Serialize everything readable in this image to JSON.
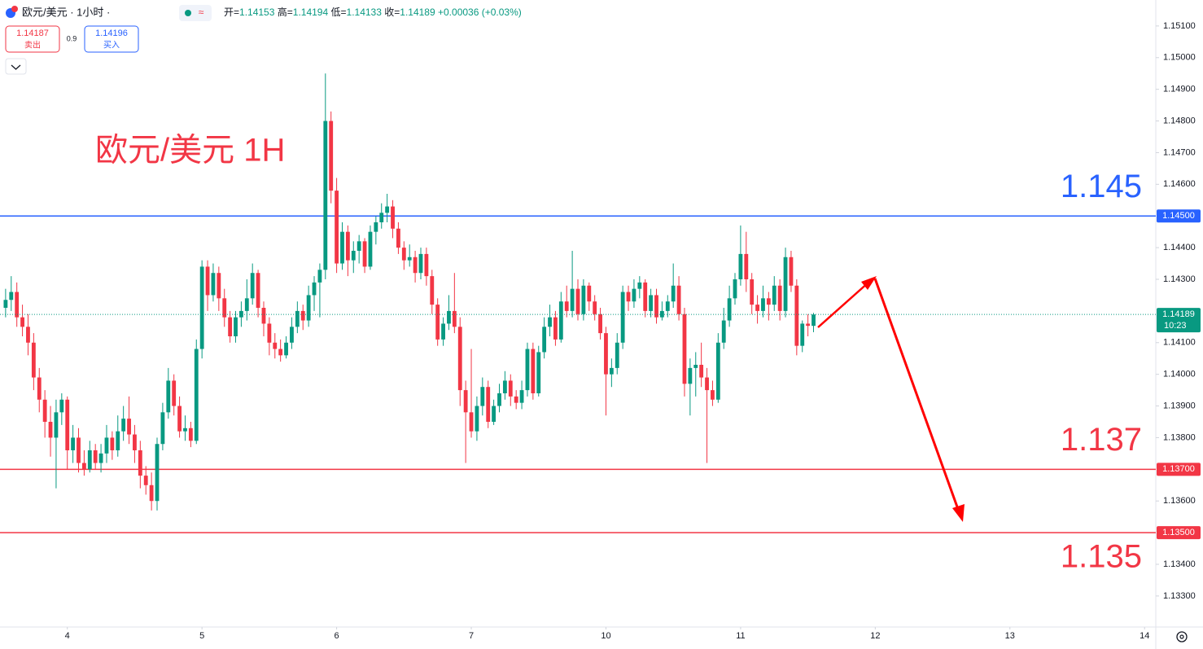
{
  "chart_data": {
    "type": "candlestick",
    "symbol": "欧元/美元 · 1小时 ·",
    "ohlc_header": [
      {
        "k": "开=",
        "v": "1.14153"
      },
      {
        "k": "高=",
        "v": "1.14194"
      },
      {
        "k": "低=",
        "v": "1.14133"
      },
      {
        "k": "收=",
        "v": "1.14189"
      }
    ],
    "change": "+0.00036 (+0.03%)",
    "sell": {
      "price": "1.14187",
      "label": "卖出"
    },
    "spread": "0.9",
    "buy": {
      "price": "1.14196",
      "label": "买入"
    },
    "annotation": "欧元/美元 1H",
    "up_color": "#089981",
    "down_color": "#f23645",
    "xlim": [
      -12,
      194
    ],
    "ylim": [
      1.13202,
      1.15182
    ],
    "xticks": [
      {
        "value": 0,
        "label": "4"
      },
      {
        "value": 24,
        "label": "5"
      },
      {
        "value": 48,
        "label": "6"
      },
      {
        "value": 72,
        "label": "7"
      },
      {
        "value": 96,
        "label": "10"
      },
      {
        "value": 120,
        "label": "11"
      },
      {
        "value": 144,
        "label": "12"
      },
      {
        "value": 168,
        "label": "13"
      },
      {
        "value": 192,
        "label": "14"
      }
    ],
    "yticks": [
      {
        "value": 1.151,
        "label": "1.15100"
      },
      {
        "value": 1.15,
        "label": "1.15000"
      },
      {
        "value": 1.149,
        "label": "1.14900"
      },
      {
        "value": 1.148,
        "label": "1.14800"
      },
      {
        "value": 1.147,
        "label": "1.14700"
      },
      {
        "value": 1.146,
        "label": "1.14600"
      },
      {
        "value": 1.144,
        "label": "1.14400"
      },
      {
        "value": 1.143,
        "label": "1.14300"
      },
      {
        "value": 1.141,
        "label": "1.14100"
      },
      {
        "value": 1.14,
        "label": "1.14000"
      },
      {
        "value": 1.139,
        "label": "1.13900"
      },
      {
        "value": 1.138,
        "label": "1.13800"
      },
      {
        "value": 1.136,
        "label": "1.13600"
      },
      {
        "value": 1.134,
        "label": "1.13400"
      },
      {
        "value": 1.133,
        "label": "1.13300"
      }
    ],
    "levels": [
      {
        "value": 1.145,
        "color": "#2962ff",
        "label": "1.145",
        "tag": "1.14500"
      },
      {
        "value": 1.137,
        "color": "#f23645",
        "label": "1.137",
        "tag": "1.13700"
      },
      {
        "value": 1.135,
        "color": "#f23645",
        "label": "1.135",
        "tag": "1.13500"
      }
    ],
    "last": {
      "value": 1.14189,
      "label": "1.14189",
      "time": "10:23"
    },
    "x": [
      -11,
      -10,
      -9,
      -8,
      -7,
      -6,
      -5,
      -4,
      -3,
      -2,
      -1,
      0,
      1,
      2,
      3,
      4,
      5,
      6,
      7,
      8,
      9,
      10,
      11,
      12,
      13,
      14,
      15,
      16,
      17,
      18,
      19,
      20,
      21,
      22,
      23,
      24,
      25,
      26,
      27,
      28,
      29,
      30,
      31,
      32,
      33,
      34,
      35,
      36,
      37,
      38,
      39,
      40,
      41,
      42,
      43,
      44,
      45,
      46,
      47,
      48,
      49,
      50,
      51,
      52,
      53,
      54,
      55,
      56,
      57,
      58,
      59,
      60,
      61,
      62,
      63,
      64,
      65,
      66,
      67,
      68,
      69,
      70,
      71,
      72,
      73,
      74,
      75,
      76,
      77,
      78,
      79,
      80,
      81,
      82,
      83,
      84,
      85,
      86,
      87,
      88,
      89,
      90,
      91,
      92,
      93,
      94,
      95,
      96,
      97,
      98,
      99,
      100,
      101,
      102,
      103,
      104,
      105,
      106,
      107,
      108,
      109,
      110,
      111,
      112,
      113,
      114,
      115,
      116,
      117,
      118,
      119,
      120,
      121,
      122,
      123,
      124,
      125,
      126,
      127,
      128,
      129,
      130,
      131,
      132,
      133
    ],
    "ohlc": [
      [
        1.1421,
        1.1427,
        1.1418,
        1.14235
      ],
      [
        1.14235,
        1.1431,
        1.142,
        1.1426
      ],
      [
        1.1426,
        1.1429,
        1.1415,
        1.1418
      ],
      [
        1.1418,
        1.1422,
        1.1412,
        1.1415
      ],
      [
        1.1415,
        1.1419,
        1.1406,
        1.141
      ],
      [
        1.141,
        1.1413,
        1.1395,
        1.1399
      ],
      [
        1.1399,
        1.1402,
        1.1388,
        1.1392
      ],
      [
        1.1392,
        1.1395,
        1.138,
        1.1385
      ],
      [
        1.1385,
        1.139,
        1.1374,
        1.138
      ],
      [
        1.138,
        1.1392,
        1.1364,
        1.1388
      ],
      [
        1.1388,
        1.1394,
        1.1384,
        1.1392
      ],
      [
        1.1392,
        1.1393,
        1.137,
        1.1376
      ],
      [
        1.1376,
        1.1384,
        1.1372,
        1.138
      ],
      [
        1.138,
        1.1383,
        1.1369,
        1.1372
      ],
      [
        1.1372,
        1.1376,
        1.1368,
        1.137
      ],
      [
        1.137,
        1.1379,
        1.1369,
        1.1376
      ],
      [
        1.1376,
        1.1378,
        1.137,
        1.1372
      ],
      [
        1.1372,
        1.1378,
        1.1369,
        1.1375
      ],
      [
        1.1375,
        1.1384,
        1.1372,
        1.138
      ],
      [
        1.138,
        1.1382,
        1.1373,
        1.1376
      ],
      [
        1.1376,
        1.1387,
        1.1374,
        1.1382
      ],
      [
        1.1382,
        1.139,
        1.1379,
        1.1386
      ],
      [
        1.1386,
        1.1393,
        1.1378,
        1.1381
      ],
      [
        1.1381,
        1.1384,
        1.1372,
        1.1376
      ],
      [
        1.1376,
        1.1379,
        1.1364,
        1.1368
      ],
      [
        1.1368,
        1.1371,
        1.1362,
        1.1365
      ],
      [
        1.1365,
        1.1369,
        1.1357,
        1.136
      ],
      [
        1.136,
        1.138,
        1.1357,
        1.1378
      ],
      [
        1.1378,
        1.1391,
        1.1376,
        1.1388
      ],
      [
        1.1388,
        1.1402,
        1.1386,
        1.1398
      ],
      [
        1.1398,
        1.14,
        1.1387,
        1.139
      ],
      [
        1.139,
        1.1393,
        1.138,
        1.1382
      ],
      [
        1.1382,
        1.1387,
        1.1379,
        1.1383
      ],
      [
        1.1383,
        1.1385,
        1.1377,
        1.1379
      ],
      [
        1.1379,
        1.1411,
        1.1378,
        1.1408
      ],
      [
        1.1408,
        1.1436,
        1.1405,
        1.1434
      ],
      [
        1.1434,
        1.1436,
        1.142,
        1.1425
      ],
      [
        1.1425,
        1.1435,
        1.1423,
        1.1432
      ],
      [
        1.1432,
        1.1434,
        1.142,
        1.1424
      ],
      [
        1.1424,
        1.1427,
        1.1415,
        1.1418
      ],
      [
        1.1418,
        1.142,
        1.141,
        1.1412
      ],
      [
        1.1412,
        1.142,
        1.141,
        1.1418
      ],
      [
        1.1418,
        1.1423,
        1.1415,
        1.142
      ],
      [
        1.142,
        1.143,
        1.1417,
        1.1424
      ],
      [
        1.1424,
        1.1435,
        1.1422,
        1.1432
      ],
      [
        1.1432,
        1.1433,
        1.1418,
        1.1421
      ],
      [
        1.1421,
        1.1423,
        1.1412,
        1.1416
      ],
      [
        1.1416,
        1.1418,
        1.1406,
        1.141
      ],
      [
        1.141,
        1.1413,
        1.1405,
        1.1408
      ],
      [
        1.1408,
        1.1411,
        1.1404,
        1.1406
      ],
      [
        1.1406,
        1.1412,
        1.1405,
        1.141
      ],
      [
        1.141,
        1.1418,
        1.1408,
        1.1415
      ],
      [
        1.1415,
        1.1423,
        1.1413,
        1.142
      ],
      [
        1.142,
        1.1422,
        1.1414,
        1.1417
      ],
      [
        1.1417,
        1.1428,
        1.1415,
        1.1425
      ],
      [
        1.1425,
        1.1431,
        1.142,
        1.1429
      ],
      [
        1.1429,
        1.1435,
        1.1418,
        1.1433
      ],
      [
        1.1433,
        1.1495,
        1.143,
        1.148
      ],
      [
        1.148,
        1.1483,
        1.1454,
        1.1458
      ],
      [
        1.1458,
        1.1462,
        1.1432,
        1.1435
      ],
      [
        1.1435,
        1.1448,
        1.1433,
        1.1445
      ],
      [
        1.1445,
        1.1447,
        1.1431,
        1.1436
      ],
      [
        1.1436,
        1.1442,
        1.1432,
        1.1439
      ],
      [
        1.1439,
        1.1444,
        1.1435,
        1.1442
      ],
      [
        1.1442,
        1.1443,
        1.1432,
        1.1434
      ],
      [
        1.1434,
        1.1447,
        1.1433,
        1.1445
      ],
      [
        1.1445,
        1.145,
        1.1441,
        1.1448
      ],
      [
        1.1448,
        1.1454,
        1.1446,
        1.1451
      ],
      [
        1.1451,
        1.1457,
        1.1448,
        1.1453
      ],
      [
        1.1453,
        1.1455,
        1.1443,
        1.1446
      ],
      [
        1.1446,
        1.1448,
        1.1438,
        1.144
      ],
      [
        1.144,
        1.1442,
        1.1433,
        1.1436
      ],
      [
        1.1436,
        1.1441,
        1.1434,
        1.1437
      ],
      [
        1.1437,
        1.1439,
        1.1429,
        1.1432
      ],
      [
        1.1432,
        1.144,
        1.143,
        1.1438
      ],
      [
        1.1438,
        1.144,
        1.1428,
        1.1431
      ],
      [
        1.1431,
        1.1433,
        1.1419,
        1.1422
      ],
      [
        1.1422,
        1.1424,
        1.1409,
        1.1411
      ],
      [
        1.1411,
        1.1418,
        1.1409,
        1.1416
      ],
      [
        1.1416,
        1.1425,
        1.1414,
        1.142
      ],
      [
        1.142,
        1.1432,
        1.1413,
        1.1415
      ],
      [
        1.1415,
        1.1418,
        1.139,
        1.1395
      ],
      [
        1.1395,
        1.1398,
        1.1372,
        1.1388
      ],
      [
        1.1388,
        1.1408,
        1.138,
        1.1382
      ],
      [
        1.1382,
        1.1393,
        1.1379,
        1.139
      ],
      [
        1.139,
        1.1399,
        1.1387,
        1.1396
      ],
      [
        1.1396,
        1.1398,
        1.1383,
        1.1385
      ],
      [
        1.1385,
        1.1392,
        1.1384,
        1.139
      ],
      [
        1.139,
        1.1397,
        1.1388,
        1.1394
      ],
      [
        1.1394,
        1.1401,
        1.1392,
        1.1398
      ],
      [
        1.1398,
        1.14,
        1.139,
        1.1393
      ],
      [
        1.1393,
        1.1395,
        1.1389,
        1.1391
      ],
      [
        1.1391,
        1.1398,
        1.1389,
        1.1395
      ],
      [
        1.1395,
        1.141,
        1.1393,
        1.1408
      ],
      [
        1.1408,
        1.141,
        1.1392,
        1.1394
      ],
      [
        1.1394,
        1.1409,
        1.1393,
        1.1407
      ],
      [
        1.1407,
        1.1418,
        1.1405,
        1.1415
      ],
      [
        1.1415,
        1.1422,
        1.1412,
        1.1418
      ],
      [
        1.1418,
        1.142,
        1.1409,
        1.1411
      ],
      [
        1.1411,
        1.1426,
        1.141,
        1.1423
      ],
      [
        1.1423,
        1.1428,
        1.1418,
        1.142
      ],
      [
        1.142,
        1.1439,
        1.1418,
        1.1427
      ],
      [
        1.1427,
        1.143,
        1.1417,
        1.1419
      ],
      [
        1.1419,
        1.143,
        1.1417,
        1.1428
      ],
      [
        1.1428,
        1.1429,
        1.142,
        1.1423
      ],
      [
        1.1423,
        1.1425,
        1.1417,
        1.1419
      ],
      [
        1.1419,
        1.1421,
        1.1411,
        1.1413
      ],
      [
        1.1413,
        1.1415,
        1.1387,
        1.14
      ],
      [
        1.14,
        1.1405,
        1.1396,
        1.1402
      ],
      [
        1.1402,
        1.1413,
        1.14,
        1.141
      ],
      [
        1.141,
        1.1428,
        1.1408,
        1.1426
      ],
      [
        1.1426,
        1.1428,
        1.142,
        1.1423
      ],
      [
        1.1423,
        1.143,
        1.1421,
        1.1427
      ],
      [
        1.1427,
        1.1431,
        1.1424,
        1.1429
      ],
      [
        1.1429,
        1.143,
        1.1418,
        1.142
      ],
      [
        1.142,
        1.1427,
        1.1418,
        1.1425
      ],
      [
        1.1425,
        1.1427,
        1.1416,
        1.1418
      ],
      [
        1.1418,
        1.1423,
        1.1417,
        1.142
      ],
      [
        1.142,
        1.1425,
        1.1418,
        1.1423
      ],
      [
        1.1423,
        1.1435,
        1.1421,
        1.1428
      ],
      [
        1.1428,
        1.1431,
        1.1417,
        1.1419
      ],
      [
        1.1419,
        1.1421,
        1.1393,
        1.1397
      ],
      [
        1.1397,
        1.1405,
        1.1387,
        1.1402
      ],
      [
        1.1402,
        1.1407,
        1.1393,
        1.1403
      ],
      [
        1.1403,
        1.141,
        1.1396,
        1.1399
      ],
      [
        1.1399,
        1.1402,
        1.1372,
        1.1395
      ],
      [
        1.1395,
        1.1398,
        1.139,
        1.1392
      ],
      [
        1.1392,
        1.1413,
        1.1391,
        1.141
      ],
      [
        1.141,
        1.1421,
        1.1408,
        1.1417
      ],
      [
        1.1417,
        1.1428,
        1.1415,
        1.1424
      ],
      [
        1.1424,
        1.1432,
        1.1422,
        1.143
      ],
      [
        1.143,
        1.1447,
        1.1428,
        1.1438
      ],
      [
        1.1438,
        1.1445,
        1.1426,
        1.143
      ],
      [
        1.143,
        1.1432,
        1.1419,
        1.1422
      ],
      [
        1.1422,
        1.1425,
        1.1416,
        1.142
      ],
      [
        1.142,
        1.1428,
        1.1418,
        1.1424
      ],
      [
        1.1424,
        1.1426,
        1.1417,
        1.1422
      ],
      [
        1.1422,
        1.1431,
        1.142,
        1.1428
      ],
      [
        1.1428,
        1.143,
        1.1417,
        1.142
      ],
      [
        1.142,
        1.144,
        1.1418,
        1.1437
      ],
      [
        1.1437,
        1.1439,
        1.1426,
        1.1428
      ],
      [
        1.1428,
        1.143,
        1.1406,
        1.1409
      ],
      [
        1.1409,
        1.1417,
        1.1407,
        1.1416
      ],
      [
        1.1416,
        1.1419,
        1.1412,
        1.14153
      ],
      [
        1.14153,
        1.14194,
        1.14133,
        1.14189
      ]
    ]
  }
}
